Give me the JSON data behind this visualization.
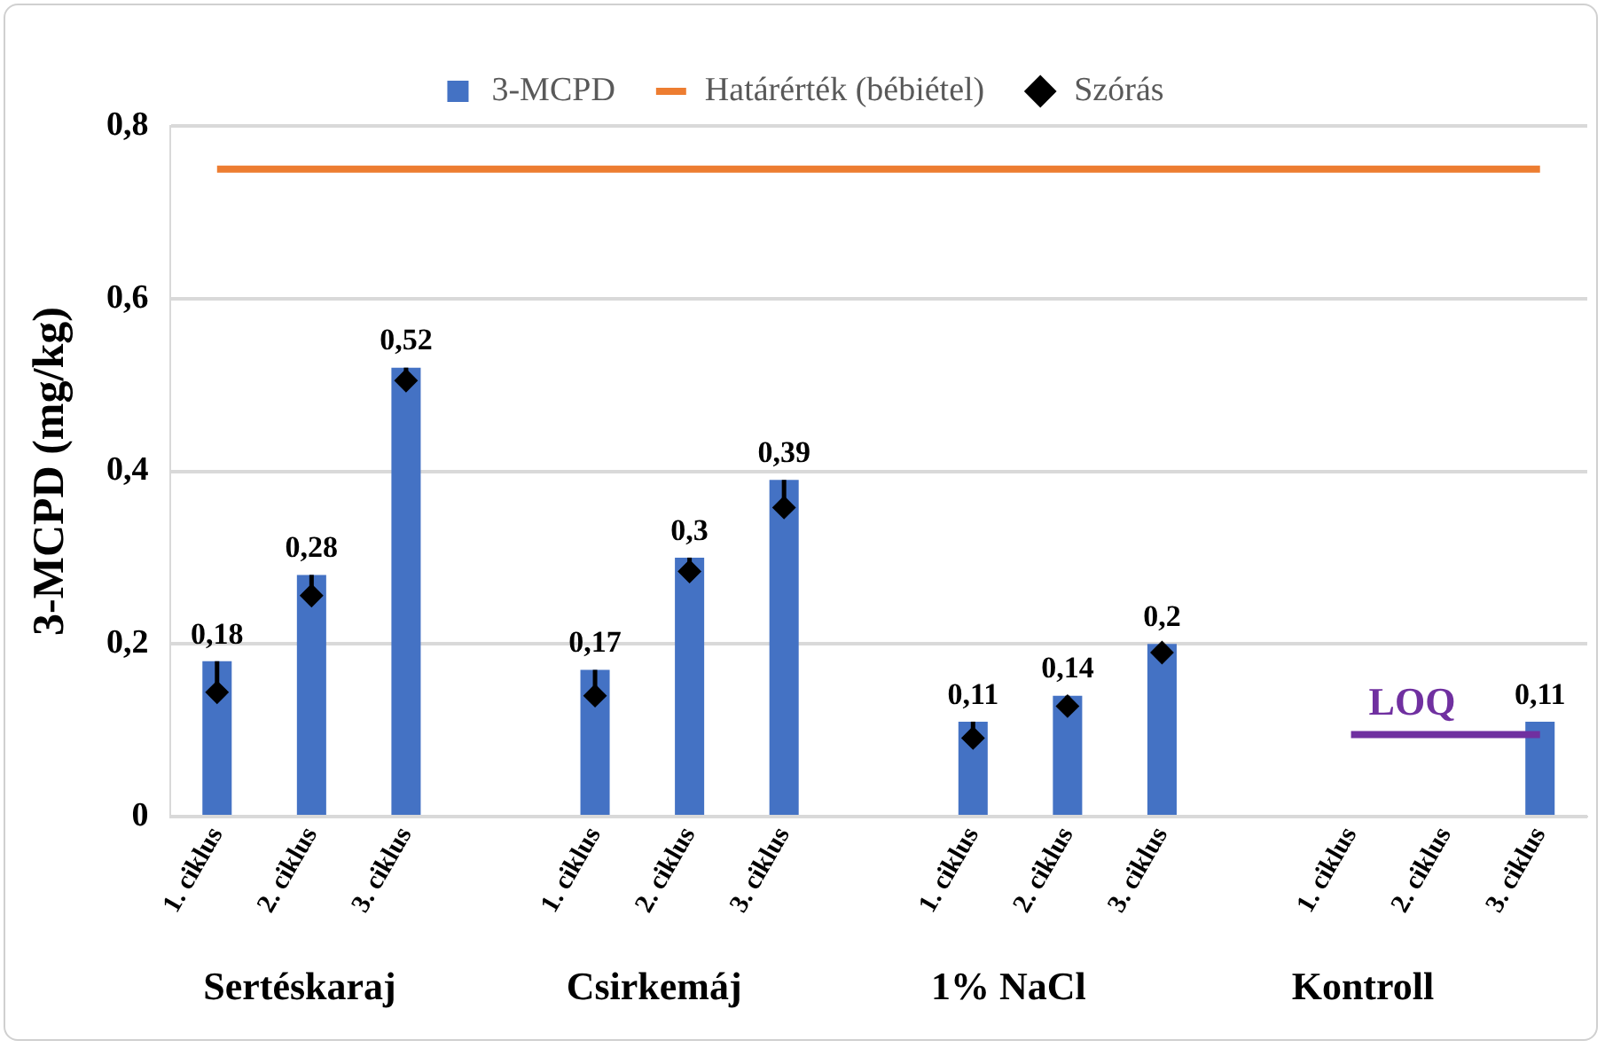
{
  "chart_data": {
    "type": "bar",
    "ylabel": "3-MCPD (mg/kg)",
    "categories": [
      "1. ciklus",
      "2. ciklus",
      "3. ciklus",
      null,
      "1. ciklus",
      "2. ciklus",
      "3. ciklus",
      null,
      "1. ciklus",
      "2. ciklus",
      "3. ciklus",
      null,
      "1. ciklus",
      "2. ciklus",
      "3. ciklus"
    ],
    "series": [
      {
        "name": "3-MCPD",
        "color": "#4472c4",
        "values": [
          0.18,
          0.28,
          0.52,
          null,
          0.17,
          0.3,
          0.39,
          null,
          0.11,
          0.14,
          0.2,
          null,
          null,
          null,
          0.11
        ],
        "value_labels": [
          "0,18",
          "0,28",
          "0,52",
          null,
          "0,17",
          "0,3",
          "0,39",
          null,
          "0,11",
          "0,14",
          "0,2",
          null,
          null,
          null,
          "0,11"
        ]
      },
      {
        "name": "Határérték (bébiétel)",
        "type": "line",
        "color": "#ed7d31",
        "values": [
          0.75,
          0.75,
          0.75,
          0.75,
          0.75,
          0.75,
          0.75,
          0.75,
          0.75,
          0.75,
          0.75,
          0.75,
          0.75,
          0.75,
          0.75
        ]
      },
      {
        "name": "Szórás",
        "type": "scatter",
        "color": "#000000",
        "marker": "diamond",
        "values": [
          0.144,
          0.256,
          0.505,
          null,
          0.14,
          0.284,
          0.358,
          null,
          0.091,
          0.128,
          0.19,
          null,
          null,
          null,
          null
        ],
        "errors": [
          [
            0.144,
            0.18
          ],
          [
            0.256,
            0.28
          ],
          [
            0.505,
            0.52
          ],
          null,
          [
            0.14,
            0.17
          ],
          [
            0.284,
            0.3
          ],
          [
            0.358,
            0.39
          ],
          null,
          [
            0.091,
            0.11
          ],
          [
            0.128,
            0.14
          ],
          [
            0.19,
            0.2
          ],
          null,
          null,
          null,
          null
        ]
      },
      {
        "name": "LOQ",
        "type": "line",
        "color": "#7030a0",
        "values": [
          null,
          null,
          null,
          null,
          null,
          null,
          null,
          null,
          null,
          null,
          null,
          null,
          0.095,
          0.095,
          0.095
        ]
      }
    ],
    "ylim": [
      0,
      0.8
    ],
    "yticks": [
      {
        "value": 0,
        "label": "0"
      },
      {
        "value": 0.2,
        "label": "0,2"
      },
      {
        "value": 0.4,
        "label": "0,4"
      },
      {
        "value": 0.6,
        "label": "0,6"
      },
      {
        "value": 0.8,
        "label": "0,8"
      }
    ],
    "grid": "y",
    "legend": "top",
    "annotations": [
      "Sertéskaraj",
      "Csirkemáj",
      "1% NaCl",
      "Kontroll"
    ]
  }
}
